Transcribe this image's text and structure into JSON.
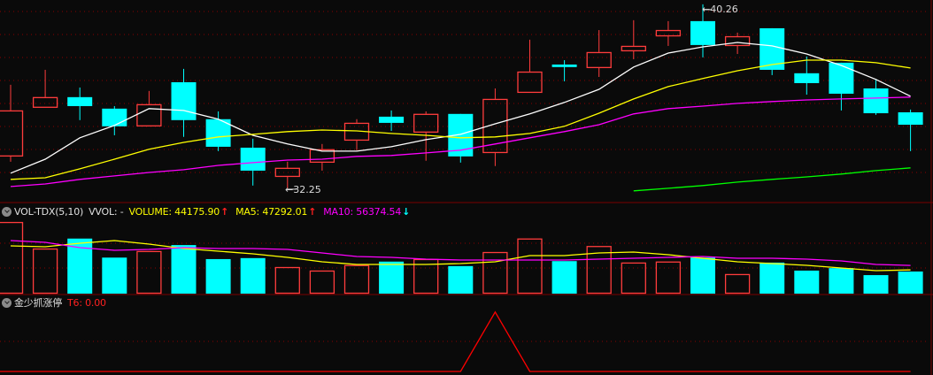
{
  "colors": {
    "background": "#0a0a0a",
    "up": "#ff3c3c",
    "down": "#00ffff",
    "grid": "#8b0000",
    "ma_white": "#ffffff",
    "ma_yellow": "#ffff00",
    "ma_magenta": "#ff00ff",
    "ma_green": "#00ff00",
    "indicator": "#ff0000"
  },
  "price_panel": {
    "high_label": "40.26",
    "low_label": "32.25",
    "arrow": "←"
  },
  "volume_legend": {
    "icon": "collapse-circle-icon",
    "name": "VOL-TDX(5,10)",
    "vvol": "VVOL: -",
    "volume": "VOLUME: 44175.90",
    "volume_arrow": "↑",
    "ma5": "MA5: 47292.01",
    "ma5_arrow": "↑",
    "ma10": "MA10: 56374.54",
    "ma10_arrow": "↓"
  },
  "indicator_legend": {
    "icon": "collapse-circle-icon",
    "name": "金少抓涨停",
    "t6": "T6: 0.00"
  },
  "chart_data": [
    {
      "type": "candlestick",
      "ylim": [
        31.67,
        40.45
      ],
      "grid": true,
      "ohlc": [
        [
          33.64,
          36.76,
          33.41,
          35.64
        ],
        [
          35.76,
          37.41,
          35.76,
          36.22
        ],
        [
          36.22,
          36.64,
          35.22,
          35.83
        ],
        [
          35.72,
          35.83,
          34.56,
          34.95
        ],
        [
          34.95,
          36.49,
          34.95,
          35.91
        ],
        [
          36.87,
          37.45,
          34.49,
          35.22
        ],
        [
          35.26,
          35.6,
          33.87,
          34.06
        ],
        [
          34.02,
          34.41,
          32.37,
          33.02
        ],
        [
          32.75,
          33.41,
          32.25,
          33.14
        ],
        [
          33.37,
          34.18,
          33.02,
          33.95
        ],
        [
          34.33,
          35.26,
          33.91,
          35.1
        ],
        [
          35.37,
          35.64,
          34.75,
          35.1
        ],
        [
          34.68,
          35.6,
          33.45,
          35.49
        ],
        [
          35.49,
          35.49,
          33.37,
          33.64
        ],
        [
          33.79,
          36.6,
          33.22,
          36.14
        ],
        [
          36.41,
          38.72,
          36.41,
          37.33
        ],
        [
          37.64,
          37.83,
          36.91,
          37.53
        ],
        [
          37.49,
          39.14,
          37.1,
          38.18
        ],
        [
          38.22,
          39.57,
          37.87,
          38.45
        ],
        [
          38.87,
          39.53,
          38.45,
          39.14
        ],
        [
          39.53,
          40.26,
          37.95,
          38.49
        ],
        [
          38.45,
          39.03,
          38.1,
          38.87
        ],
        [
          39.22,
          39.22,
          37.18,
          37.41
        ],
        [
          37.26,
          37.99,
          36.33,
          36.83
        ],
        [
          37.72,
          37.72,
          35.64,
          36.37
        ],
        [
          36.6,
          36.99,
          35.45,
          35.52
        ],
        [
          35.56,
          35.68,
          33.87,
          35.02
        ]
      ],
      "series": [
        {
          "color": "#ffffff",
          "values": [
            32.91,
            33.52,
            34.45,
            34.99,
            35.72,
            35.64,
            35.26,
            34.56,
            34.18,
            33.87,
            33.87,
            34.06,
            34.37,
            34.6,
            35.06,
            35.49,
            35.99,
            36.56,
            37.53,
            38.14,
            38.41,
            38.6,
            38.45,
            38.1,
            37.6,
            36.99,
            36.26
          ]
        },
        {
          "color": "#ffff00",
          "values": [
            32.64,
            32.71,
            33.1,
            33.52,
            33.95,
            34.25,
            34.49,
            34.6,
            34.72,
            34.79,
            34.75,
            34.64,
            34.56,
            34.45,
            34.49,
            34.64,
            34.95,
            35.52,
            36.14,
            36.68,
            37.03,
            37.37,
            37.64,
            37.83,
            37.83,
            37.72,
            37.49
          ]
        },
        {
          "color": "#ff00ff",
          "values": [
            32.33,
            32.44,
            32.64,
            32.79,
            32.94,
            33.06,
            33.25,
            33.37,
            33.48,
            33.52,
            33.64,
            33.68,
            33.79,
            33.91,
            34.18,
            34.45,
            34.72,
            35.02,
            35.49,
            35.72,
            35.83,
            35.95,
            36.03,
            36.1,
            36.14,
            36.18,
            36.22
          ]
        },
        {
          "color": "#00ff00",
          "values": [
            null,
            null,
            null,
            null,
            null,
            null,
            null,
            null,
            null,
            null,
            null,
            null,
            null,
            null,
            null,
            null,
            null,
            null,
            32.14,
            32.25,
            32.37,
            32.52,
            32.64,
            32.75,
            32.87,
            33.02,
            33.14
          ]
        }
      ],
      "annotations": [
        {
          "text": "40.26",
          "index": 20,
          "price": 40.26
        },
        {
          "text": "32.25",
          "index": 8,
          "price": 32.25
        }
      ]
    },
    {
      "type": "bar",
      "ylim": [
        0,
        176700
      ],
      "grid": true,
      "values": [
        143000,
        90000,
        110000,
        72000,
        85000,
        97000,
        69000,
        71000,
        53000,
        46000,
        57000,
        64000,
        69000,
        55000,
        83000,
        110000,
        65000,
        95000,
        62000,
        64000,
        72000,
        39000,
        62000,
        46000,
        51000,
        37000,
        44175.9
      ],
      "up": [
        true,
        true,
        false,
        false,
        true,
        false,
        false,
        false,
        true,
        true,
        true,
        false,
        true,
        false,
        true,
        true,
        false,
        true,
        true,
        true,
        false,
        true,
        false,
        false,
        false,
        false,
        false
      ],
      "series": [
        {
          "name": "MA5",
          "color": "#ffff00",
          "values": [
            95400,
            93700,
            100700,
            106000,
            99000,
            90100,
            84800,
            79500,
            72400,
            63600,
            58300,
            58300,
            58300,
            60100,
            63600,
            76000,
            76000,
            81300,
            83000,
            77700,
            70700,
            63600,
            60100,
            56500,
            51200,
            45900,
            47292.01
          ]
        },
        {
          "name": "MA10",
          "color": "#ff00ff",
          "values": [
            106000,
            102500,
            91900,
            86600,
            88400,
            91900,
            90100,
            90100,
            88400,
            81300,
            74200,
            72400,
            68900,
            67100,
            67100,
            67100,
            67100,
            68900,
            70700,
            72400,
            74200,
            70700,
            70700,
            68900,
            65400,
            58300,
            56374.54
          ]
        }
      ]
    },
    {
      "type": "line",
      "ylim": [
        0,
        1.25
      ],
      "grid": true,
      "series": [
        {
          "name": "T6",
          "color": "#ff0000",
          "values": [
            0,
            0,
            0,
            0,
            0,
            0,
            0,
            0,
            0,
            0,
            0,
            0,
            0,
            0,
            1,
            0,
            0,
            0,
            0,
            0,
            0,
            0,
            0,
            0,
            0,
            0,
            0
          ]
        }
      ]
    }
  ]
}
